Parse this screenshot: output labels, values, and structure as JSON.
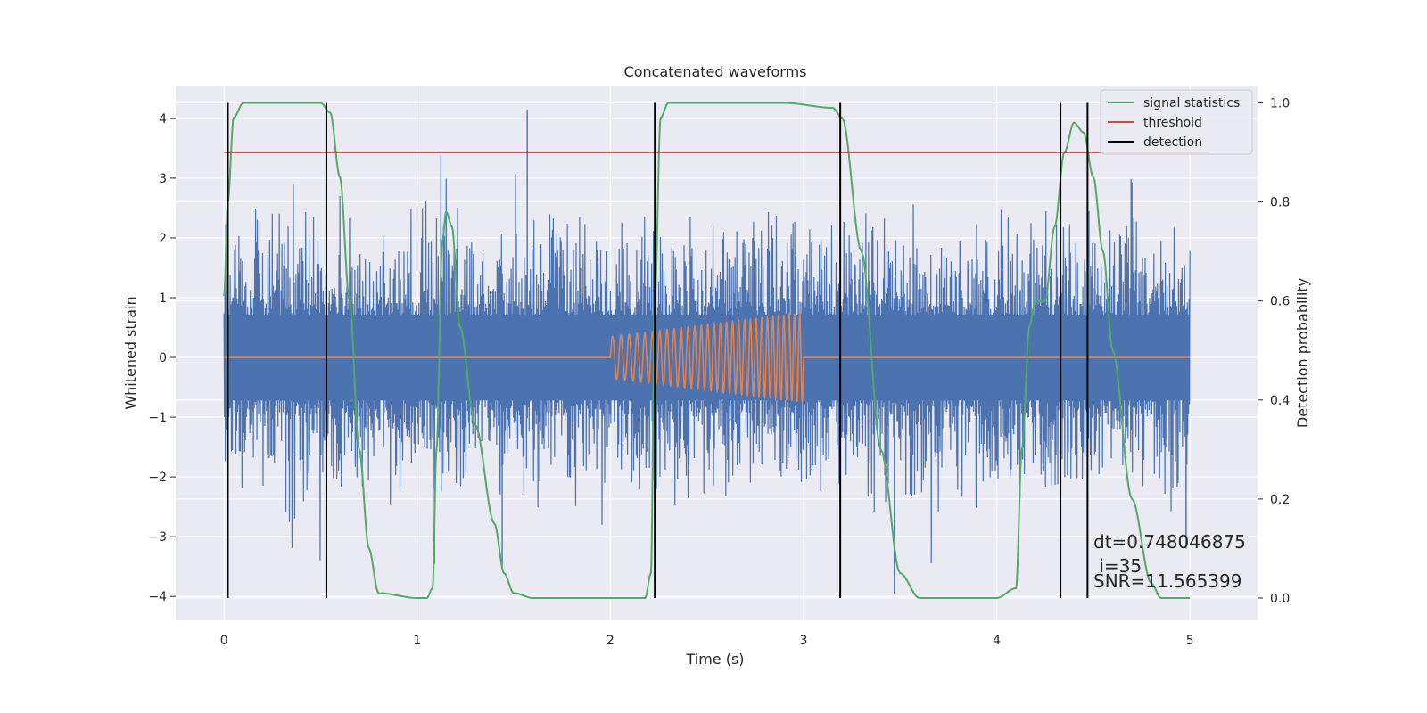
{
  "chart_data": {
    "type": "line",
    "title": "Concatenated waveforms",
    "xlabel": "Time (s)",
    "ylabel": "Whitened strain",
    "y2label": "Detection probability",
    "xlim": [
      -0.25,
      5.35
    ],
    "ylim": [
      -4.4,
      4.55
    ],
    "y2lim": [
      -0.045,
      1.035
    ],
    "xticks": [
      0,
      1,
      2,
      3,
      4,
      5
    ],
    "yticks": [
      -4,
      -3,
      -2,
      -1,
      0,
      1,
      2,
      3,
      4
    ],
    "y2ticks": [
      0.0,
      0.2,
      0.4,
      0.6,
      0.8,
      1.0
    ],
    "xtick_labels": [
      "0",
      "1",
      "2",
      "3",
      "4",
      "5"
    ],
    "ytick_labels": [
      "−4",
      "−3",
      "−2",
      "−1",
      "0",
      "1",
      "2",
      "3",
      "4"
    ],
    "y2tick_labels": [
      "0.0",
      "0.2",
      "0.4",
      "0.6",
      "0.8",
      "1.0"
    ],
    "grid": true,
    "legend_position": "top-right",
    "colors": {
      "strain": "#4c72b0",
      "template": "#dd8452",
      "signal_statistics": "#55a868",
      "threshold": "#c44e52",
      "detection": "#000000",
      "background": "#eaeaf2",
      "grid": "#ffffff"
    },
    "series": [
      {
        "name": "signal statistics",
        "axis": "right",
        "x": [
          0.0,
          0.02,
          0.05,
          0.1,
          0.5,
          0.55,
          0.6,
          0.65,
          0.7,
          0.75,
          0.8,
          1.0,
          1.05,
          1.08,
          1.1,
          1.13,
          1.15,
          1.18,
          1.22,
          1.3,
          1.4,
          1.45,
          1.5,
          1.6,
          2.0,
          2.18,
          2.21,
          2.23,
          2.26,
          2.3,
          2.5,
          2.9,
          3.15,
          3.2,
          3.3,
          3.4,
          3.5,
          3.6,
          4.0,
          4.1,
          4.13,
          4.17,
          4.2,
          4.25,
          4.3,
          4.35,
          4.4,
          4.45,
          4.5,
          4.55,
          4.6,
          4.7,
          4.8,
          4.85,
          5.0
        ],
        "values": [
          0.61,
          0.8,
          0.97,
          1.0,
          1.0,
          0.98,
          0.85,
          0.6,
          0.3,
          0.1,
          0.01,
          0.0,
          0.0,
          0.02,
          0.3,
          0.72,
          0.78,
          0.75,
          0.55,
          0.35,
          0.15,
          0.05,
          0.01,
          0.0,
          0.0,
          0.0,
          0.05,
          0.6,
          0.97,
          1.0,
          1.0,
          1.0,
          0.99,
          0.97,
          0.7,
          0.3,
          0.05,
          0.0,
          0.0,
          0.02,
          0.3,
          0.55,
          0.6,
          0.6,
          0.75,
          0.9,
          0.96,
          0.94,
          0.85,
          0.7,
          0.5,
          0.2,
          0.03,
          0.0,
          0.0
        ]
      },
      {
        "name": "threshold",
        "axis": "right",
        "x": [
          0.0,
          5.1
        ],
        "values": [
          0.9,
          0.9
        ]
      },
      {
        "name": "detection",
        "axis": "right",
        "type": "vlines",
        "x": [
          0.02,
          0.53,
          2.23,
          3.19,
          4.33,
          4.47
        ],
        "range": [
          0.0,
          1.0
        ]
      },
      {
        "name": "",
        "axis": "left",
        "type": "noise",
        "x_range": [
          0,
          5
        ],
        "envelope": 0.72,
        "spike_max": 4.15
      },
      {
        "name": "",
        "axis": "left",
        "type": "chirp",
        "x_range": [
          2.0,
          3.0
        ],
        "amplitude_start": 0.35,
        "amplitude_end": 0.75,
        "cycles": 30
      }
    ],
    "annotations": [
      "dt=0.748046875",
      " i=35",
      "SNR=11.565399"
    ]
  }
}
